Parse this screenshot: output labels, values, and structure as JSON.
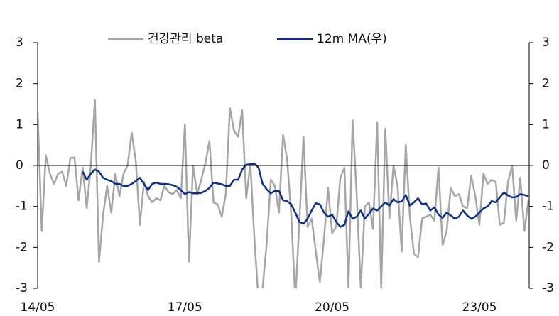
{
  "chart_data": {
    "type": "line",
    "categories": [
      "14/05",
      null,
      null,
      null,
      null,
      null,
      null,
      null,
      null,
      null,
      null,
      null,
      null,
      null,
      null,
      null,
      null,
      null,
      null,
      null,
      null,
      null,
      null,
      null,
      null,
      null,
      null,
      null,
      null,
      null,
      null,
      null,
      null,
      null,
      null,
      null,
      "17/05",
      null,
      null,
      null,
      null,
      null,
      null,
      null,
      null,
      null,
      null,
      null,
      null,
      null,
      null,
      null,
      null,
      null,
      null,
      null,
      null,
      null,
      null,
      null,
      null,
      null,
      null,
      null,
      null,
      null,
      null,
      null,
      null,
      null,
      null,
      null,
      "20/05",
      null,
      null,
      null,
      null,
      null,
      null,
      null,
      null,
      null,
      null,
      null,
      null,
      null,
      null,
      null,
      null,
      null,
      null,
      null,
      null,
      null,
      null,
      null,
      null,
      null,
      null,
      null,
      null,
      null,
      null,
      null,
      null,
      null,
      null,
      null,
      "23/05",
      null,
      null,
      null,
      null,
      null,
      null,
      null,
      null,
      null,
      null,
      null,
      null
    ],
    "series": [
      {
        "name": "건강관리 beta",
        "color": "#a6a6a6",
        "values": [
          1.3,
          -1.6,
          0.25,
          -0.2,
          -0.45,
          -0.2,
          -0.15,
          -0.5,
          0.18,
          0.2,
          -0.85,
          -0.05,
          -1.05,
          0.0,
          1.6,
          -2.35,
          -1.2,
          -0.5,
          -1.15,
          -0.2,
          -0.75,
          -0.2,
          0.0,
          0.8,
          0.1,
          -1.45,
          -0.4,
          -0.75,
          -0.9,
          -0.8,
          -0.85,
          -0.5,
          -0.65,
          -0.7,
          -0.6,
          -0.8,
          1.0,
          -2.35,
          0.0,
          -0.7,
          -0.35,
          0.05,
          0.6,
          -0.9,
          -0.95,
          -1.25,
          -0.7,
          1.4,
          0.85,
          0.7,
          1.35,
          -0.8,
          0.05,
          -1.8,
          -3.3,
          -3.0,
          -1.9,
          -0.35,
          -0.5,
          -1.15,
          0.75,
          0.15,
          -1.2,
          -3.3,
          -1.35,
          0.7,
          -1.5,
          -1.3,
          -2.1,
          -2.85,
          -1.8,
          -0.55,
          -1.65,
          -1.5,
          -0.3,
          -0.05,
          -3.0,
          1.1,
          -0.7,
          -3.0,
          -1.0,
          -0.9,
          -1.55,
          1.05,
          -3.0,
          0.9,
          -1.3,
          0.0,
          -0.5,
          -2.1,
          0.5,
          -1.25,
          -2.15,
          -2.25,
          -1.3,
          -1.25,
          -1.2,
          -1.35,
          -0.05,
          -1.95,
          -1.6,
          -0.55,
          -0.75,
          -0.7,
          -1.0,
          -1.05,
          -0.25,
          -0.75,
          -1.45,
          -0.2,
          -0.45,
          -0.35,
          -0.4,
          -1.45,
          -1.4,
          -0.4,
          0.0,
          -1.35,
          -0.3,
          -1.6,
          -0.85
        ]
      },
      {
        "name": "12m MA(우)",
        "color": "#0b2f8a",
        "axis": "y2",
        "values": [
          null,
          null,
          null,
          null,
          null,
          null,
          null,
          null,
          null,
          null,
          null,
          -0.15,
          -0.35,
          -0.2,
          -0.1,
          -0.15,
          -0.3,
          -0.35,
          -0.38,
          -0.45,
          -0.45,
          -0.5,
          -0.5,
          -0.45,
          -0.38,
          -0.3,
          -0.45,
          -0.6,
          -0.45,
          -0.42,
          -0.45,
          -0.45,
          -0.46,
          -0.48,
          -0.52,
          -0.6,
          -0.7,
          -0.65,
          -0.68,
          -0.68,
          -0.67,
          -0.62,
          -0.55,
          -0.42,
          -0.44,
          -0.46,
          -0.5,
          -0.5,
          -0.35,
          -0.35,
          -0.1,
          0.02,
          0.03,
          0.04,
          -0.05,
          -0.45,
          -0.58,
          -0.68,
          -0.62,
          -0.62,
          -0.85,
          -0.87,
          -0.95,
          -1.15,
          -1.38,
          -1.42,
          -1.3,
          -1.1,
          -0.92,
          -0.95,
          -1.15,
          -1.25,
          -1.2,
          -1.38,
          -1.5,
          -1.45,
          -1.12,
          -1.3,
          -1.25,
          -1.1,
          -1.3,
          -1.18,
          -1.05,
          -1.1,
          -1.0,
          -0.9,
          -0.98,
          -0.82,
          -0.9,
          -0.88,
          -0.72,
          -0.98,
          -0.9,
          -0.8,
          -0.95,
          -0.93,
          -1.1,
          -1.02,
          -1.2,
          -1.28,
          -1.15,
          -1.22,
          -1.3,
          -1.25,
          -1.1,
          -1.22,
          -1.3,
          -1.25,
          -1.15,
          -1.05,
          -1.0,
          -0.87,
          -0.9,
          -0.78,
          -0.66,
          -0.73,
          -0.78,
          -0.77,
          -0.7,
          -0.72,
          -0.75
        ]
      }
    ],
    "ylim": [
      -3,
      3
    ],
    "yticks": [
      -3,
      -2,
      -1,
      0,
      1,
      2,
      3
    ],
    "y2lim": [
      -3,
      3
    ],
    "y2ticks": [
      -3,
      -2,
      -1,
      0,
      1,
      2,
      3
    ],
    "legend": "top"
  }
}
